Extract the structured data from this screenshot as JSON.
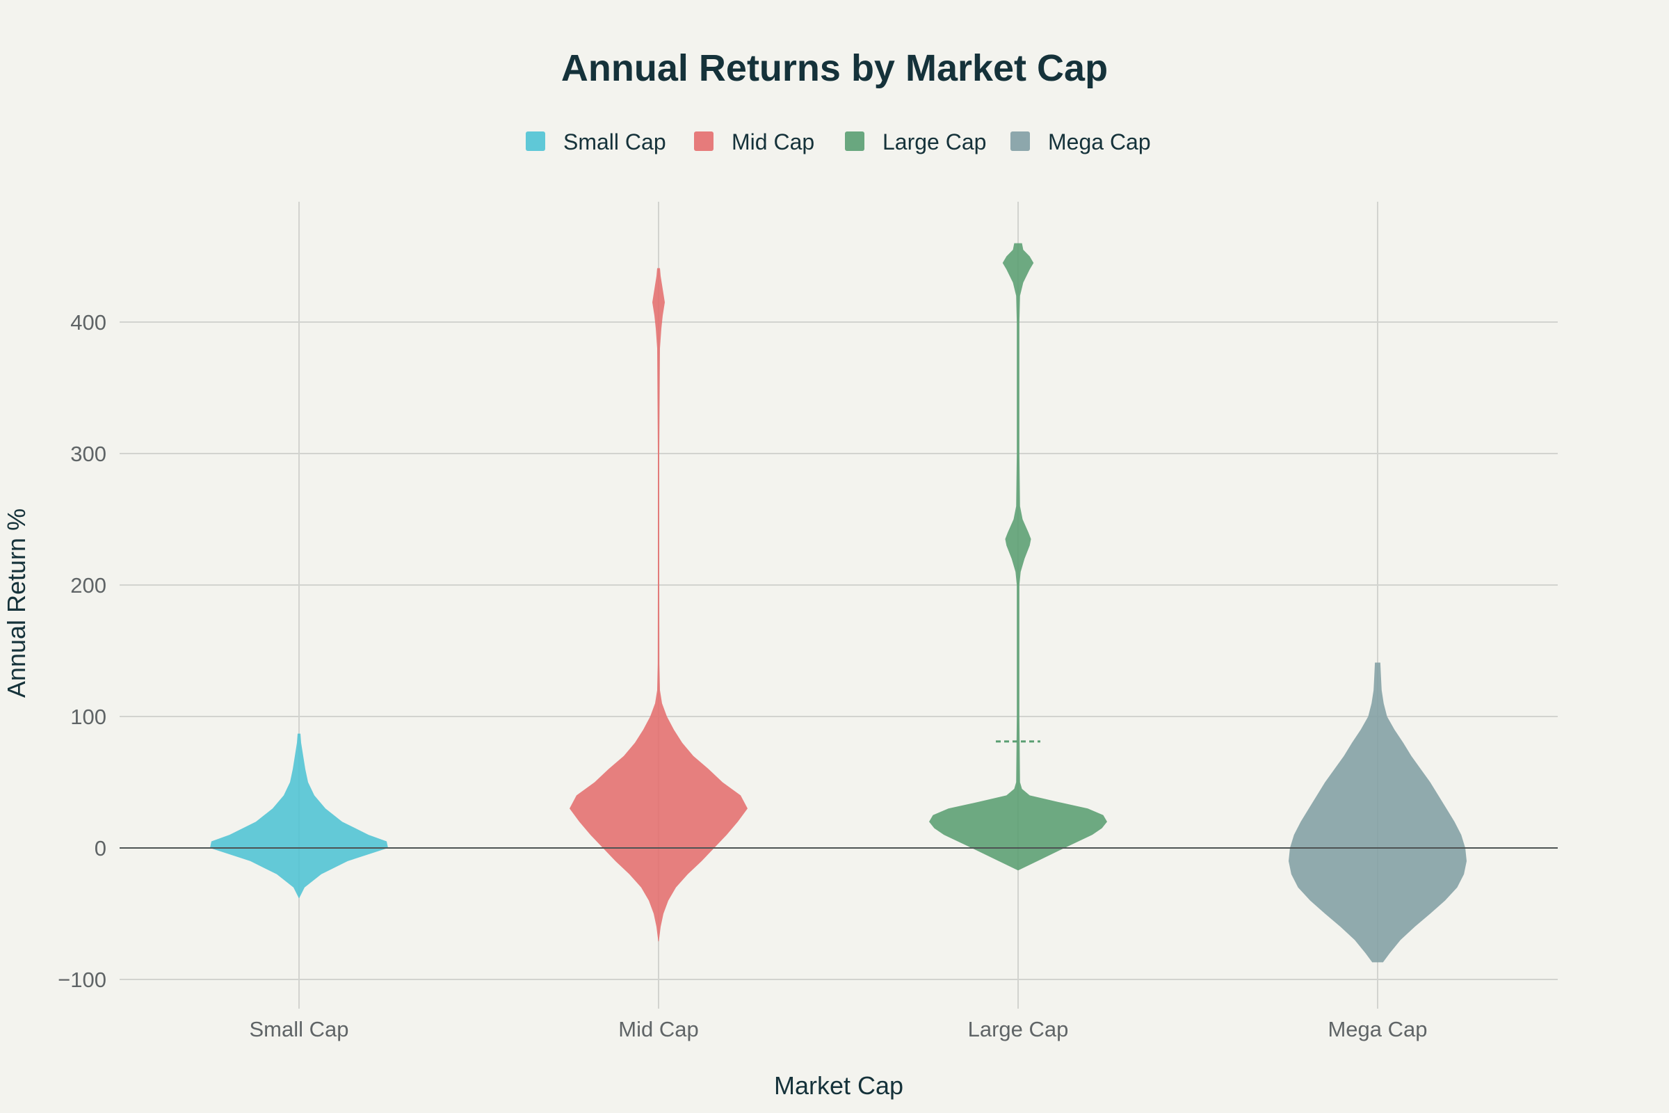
{
  "chart_data": {
    "type": "violin",
    "title": "Annual Returns by Market Cap",
    "xlabel": "Market Cap",
    "ylabel": "Annual Return %",
    "ylim": [
      -115,
      490
    ],
    "yticks": [
      -100,
      0,
      100,
      200,
      300,
      400
    ],
    "ytick_labels": [
      "−100",
      "0",
      "100",
      "200",
      "300",
      "400"
    ],
    "grid": true,
    "legend_position": "top-center",
    "categories": [
      "Small Cap",
      "Mid Cap",
      "Large Cap",
      "Mega Cap"
    ],
    "series": [
      {
        "name": "Small Cap",
        "color": "#4fc3d4",
        "min": -38,
        "max": 87,
        "density": [
          [
            -38,
            0.4
          ],
          [
            -30,
            8
          ],
          [
            -20,
            32
          ],
          [
            -10,
            70
          ],
          [
            0,
            128
          ],
          [
            5,
            126
          ],
          [
            10,
            100
          ],
          [
            20,
            62
          ],
          [
            30,
            38
          ],
          [
            40,
            22
          ],
          [
            50,
            13
          ],
          [
            60,
            9
          ],
          [
            70,
            6
          ],
          [
            80,
            3
          ],
          [
            87,
            2
          ]
        ]
      },
      {
        "name": "Mid Cap",
        "color": "#e46e6e",
        "min": -71,
        "max": 441,
        "density": [
          [
            -71,
            0.4
          ],
          [
            -60,
            3
          ],
          [
            -50,
            7
          ],
          [
            -40,
            14
          ],
          [
            -30,
            25
          ],
          [
            -20,
            42
          ],
          [
            -10,
            62
          ],
          [
            0,
            80
          ],
          [
            10,
            98
          ],
          [
            20,
            114
          ],
          [
            30,
            128
          ],
          [
            40,
            118
          ],
          [
            50,
            92
          ],
          [
            60,
            72
          ],
          [
            70,
            50
          ],
          [
            80,
            34
          ],
          [
            90,
            22
          ],
          [
            100,
            12
          ],
          [
            110,
            5
          ],
          [
            120,
            2
          ],
          [
            140,
            1.2
          ],
          [
            200,
            1
          ],
          [
            300,
            1
          ],
          [
            380,
            2
          ],
          [
            395,
            4
          ],
          [
            405,
            6
          ],
          [
            415,
            9
          ],
          [
            425,
            6
          ],
          [
            435,
            3
          ],
          [
            441,
            2
          ]
        ]
      },
      {
        "name": "Large Cap",
        "color": "#5a9e72",
        "min": -17,
        "max": 460,
        "mean_line": 81,
        "density": [
          [
            -17,
            0.4
          ],
          [
            -10,
            30
          ],
          [
            0,
            72
          ],
          [
            10,
            115
          ],
          [
            15,
            130
          ],
          [
            20,
            138
          ],
          [
            25,
            132
          ],
          [
            30,
            108
          ],
          [
            35,
            62
          ],
          [
            40,
            18
          ],
          [
            45,
            6
          ],
          [
            50,
            3
          ],
          [
            100,
            2
          ],
          [
            200,
            2
          ],
          [
            210,
            4
          ],
          [
            220,
            10
          ],
          [
            230,
            18
          ],
          [
            235,
            20
          ],
          [
            240,
            16
          ],
          [
            250,
            7
          ],
          [
            260,
            3
          ],
          [
            300,
            2
          ],
          [
            400,
            2
          ],
          [
            420,
            3
          ],
          [
            430,
            8
          ],
          [
            440,
            18
          ],
          [
            445,
            24
          ],
          [
            450,
            18
          ],
          [
            455,
            8
          ],
          [
            460,
            6
          ]
        ]
      },
      {
        "name": "Mega Cap",
        "color": "#829fa4",
        "min": -87,
        "max": 141,
        "density": [
          [
            -87,
            8
          ],
          [
            -80,
            18
          ],
          [
            -70,
            34
          ],
          [
            -60,
            55
          ],
          [
            -50,
            78
          ],
          [
            -40,
            100
          ],
          [
            -30,
            118
          ],
          [
            -20,
            128
          ],
          [
            -10,
            132
          ],
          [
            0,
            130
          ],
          [
            10,
            124
          ],
          [
            20,
            114
          ],
          [
            30,
            102
          ],
          [
            40,
            90
          ],
          [
            50,
            78
          ],
          [
            60,
            64
          ],
          [
            70,
            50
          ],
          [
            80,
            38
          ],
          [
            90,
            25
          ],
          [
            100,
            14
          ],
          [
            110,
            9
          ],
          [
            120,
            6
          ],
          [
            130,
            5
          ],
          [
            141,
            4
          ]
        ]
      }
    ]
  }
}
